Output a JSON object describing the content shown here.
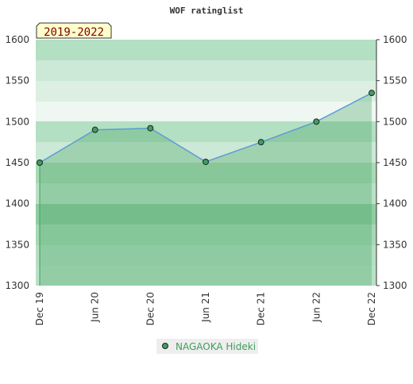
{
  "chart_data": {
    "type": "line",
    "title": "WOF ratinglist",
    "annotation": "2019-2022",
    "categories": [
      "Dec 19",
      "Jun 20",
      "Dec 20",
      "Jun 21",
      "Dec 21",
      "Jun 22",
      "Dec 22"
    ],
    "series": [
      {
        "name": "NAGAOKA Hideki",
        "color": "#5b9bd5",
        "marker_color": "#3f9e5e",
        "values": [
          1450,
          1490,
          1492,
          1451,
          1475,
          1500,
          1535
        ]
      }
    ],
    "ylim": [
      1300,
      1600
    ],
    "yticks": [
      1300,
      1350,
      1400,
      1450,
      1500,
      1550,
      1600
    ],
    "grid": false
  }
}
